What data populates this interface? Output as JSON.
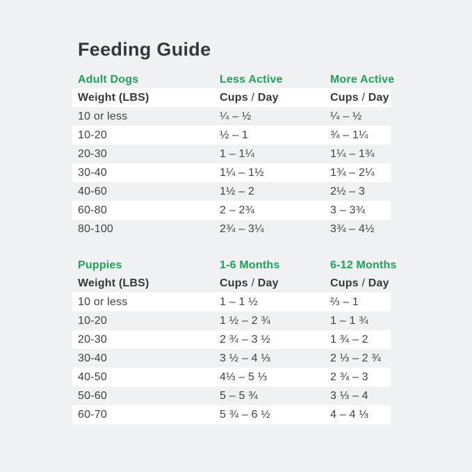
{
  "page_title": "Feeding Guide",
  "colors": {
    "background": "#f0f1f2",
    "row_highlight": "#ffffff",
    "accent_green": "#1fa156",
    "text": "#3c3f44"
  },
  "chart_data": [
    {
      "type": "table",
      "section_title": "Adult Dogs",
      "col2_title": "Less Active",
      "col3_title": "More Active",
      "header": {
        "col1": "Weight (LBS)",
        "cups": "Cups",
        "slash": "/",
        "day": "Day"
      },
      "rows": [
        [
          "10 or less",
          "¼ – ½",
          "¼ – ½"
        ],
        [
          "10-20",
          "½ – 1",
          "¾ – 1¼"
        ],
        [
          "20-30",
          "1 – 1¼",
          "1¼ – 1¾"
        ],
        [
          "30-40",
          "1¼ – 1½",
          "1¾ – 2¼"
        ],
        [
          "40-60",
          "1½ – 2",
          "2½ – 3"
        ],
        [
          "60-80",
          "2 – 2¾",
          "3 – 3¾"
        ],
        [
          "80-100",
          "2¾ – 3¼",
          "3¾ – 4½"
        ]
      ]
    },
    {
      "type": "table",
      "section_title": "Puppies",
      "col2_title": "1-6 Months",
      "col3_title": "6-12 Months",
      "header": {
        "col1": "Weight (LBS)",
        "cups": "Cups",
        "slash": "/",
        "day": "Day"
      },
      "rows": [
        [
          "10 or less",
          "1 – 1 ½",
          "⅔ – 1"
        ],
        [
          "10-20",
          "1 ½ – 2 ¾",
          "1 – 1 ¾"
        ],
        [
          "20-30",
          "2 ¾ – 3 ½",
          "1 ¾ – 2"
        ],
        [
          "30-40",
          "3 ½ – 4 ⅓",
          "2 ⅓ – 2 ¾"
        ],
        [
          "40-50",
          "4⅓ – 5 ⅓",
          "2 ¾ – 3"
        ],
        [
          "50-60",
          "5 – 5 ¾",
          "3 ⅓ – 4"
        ],
        [
          "60-70",
          "5 ¾ – 6 ½",
          "4 – 4 ⅓"
        ]
      ]
    }
  ]
}
